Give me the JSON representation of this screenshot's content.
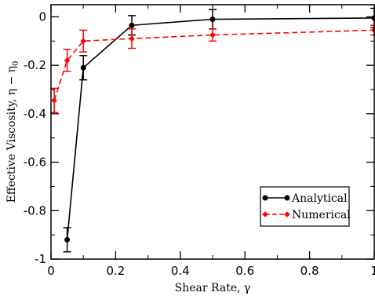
{
  "chart_data": {
    "type": "line",
    "title": "",
    "xlabel": "Shear Rate, γ",
    "ylabel_main": "Effective Viscosity, η − η",
    "ylabel_sub": "0",
    "xlim": [
      0,
      1
    ],
    "ylim": [
      -1,
      0.05
    ],
    "xticks": [
      0,
      0.2,
      0.4,
      0.6,
      0.8,
      1
    ],
    "xtick_labels": [
      "0",
      "0.2",
      "0.4",
      "0.6",
      "0.8",
      "1"
    ],
    "yticks": [
      -1,
      -0.8,
      -0.6,
      -0.4,
      -0.2,
      0
    ],
    "ytick_labels": [
      "-1",
      "-0.8",
      "-0.6",
      "-0.4",
      "-0.2",
      "0"
    ],
    "grid": false,
    "legend_position": "bottom-right",
    "series": [
      {
        "name": "Analytical",
        "color": "#000000",
        "line_style": "solid",
        "marker": "circle",
        "x": [
          0.05,
          0.1,
          0.25,
          0.5,
          1.0
        ],
        "y": [
          -0.92,
          -0.21,
          -0.035,
          -0.01,
          -0.005
        ],
        "yerr": [
          0.05,
          0.05,
          0.04,
          0.04,
          0.04
        ]
      },
      {
        "name": "Numerical",
        "color": "#ff0000",
        "line_style": "dashed",
        "marker": "diamond",
        "x": [
          0.01,
          0.05,
          0.1,
          0.25,
          0.5,
          1.0
        ],
        "y": [
          -0.345,
          -0.18,
          -0.1,
          -0.09,
          -0.075,
          -0.055
        ],
        "yerr": [
          0.05,
          0.045,
          0.045,
          0.04,
          0.025,
          0.02
        ]
      }
    ]
  }
}
